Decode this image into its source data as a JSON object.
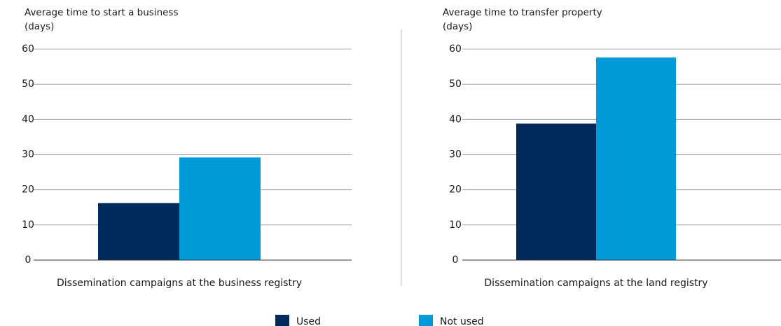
{
  "chart_data": [
    {
      "type": "bar",
      "title": "Average time to start a business",
      "ylabel": "(days)",
      "categories": [
        "Dissemination campaigns at the business registry"
      ],
      "series": [
        {
          "values": [
            16.2
          ]
        },
        {
          "values": [
            29.2
          ]
        }
      ],
      "ylim": [
        0,
        60
      ],
      "yticks": [
        0,
        10,
        20,
        30,
        40,
        50,
        60
      ],
      "grid": true
    },
    {
      "type": "bar",
      "title": "Average time to transfer property",
      "ylabel": "(days)",
      "categories": [
        "Dissemination campaigns at the land registry"
      ],
      "series": [
        {
          "values": [
            38.8
          ]
        },
        {
          "values": [
            57.6
          ]
        }
      ],
      "ylim": [
        0,
        60
      ],
      "yticks": [
        0,
        10,
        20,
        30,
        40,
        50,
        60
      ],
      "grid": true
    }
  ],
  "legend": [
    {
      "name": "Used",
      "color": "#002a5c"
    },
    {
      "name": "Not used",
      "color": "#009ad8"
    }
  ]
}
